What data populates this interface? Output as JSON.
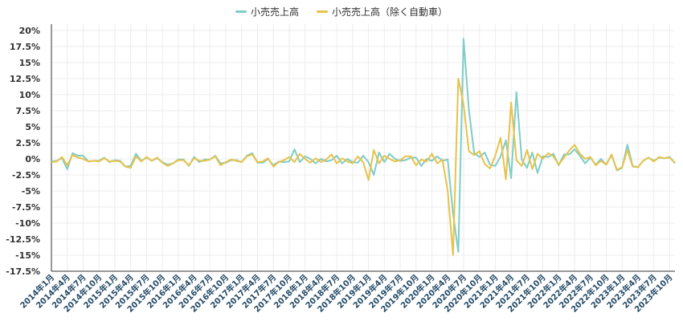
{
  "chart_data": {
    "type": "line",
    "legend_position": "top-center",
    "grid": true,
    "ylim": [
      -17.5,
      21
    ],
    "yticks": [
      20,
      17.5,
      15,
      12.5,
      10,
      7.5,
      5,
      2.5,
      0,
      -2.5,
      -5,
      -7.5,
      -10,
      -12.5,
      -15,
      -17.5
    ],
    "ytick_labels": [
      "20%",
      "17.5%",
      "15%",
      "12.5%",
      "10%",
      "7.5%",
      "5%",
      "2.5%",
      "0%",
      "-2.5%",
      "-5%",
      "-7.5%",
      "-10%",
      "-12.5%",
      "-15%",
      "-17.5%"
    ],
    "x": [
      "2014年1月",
      "2014年2月",
      "2014年3月",
      "2014年4月",
      "2014年5月",
      "2014年6月",
      "2014年7月",
      "2014年8月",
      "2014年9月",
      "2014年10月",
      "2014年11月",
      "2014年12月",
      "2015年1月",
      "2015年2月",
      "2015年3月",
      "2015年4月",
      "2015年5月",
      "2015年6月",
      "2015年7月",
      "2015年8月",
      "2015年9月",
      "2015年10月",
      "2015年11月",
      "2015年12月",
      "2016年1月",
      "2016年2月",
      "2016年3月",
      "2016年4月",
      "2016年5月",
      "2016年6月",
      "2016年7月",
      "2016年8月",
      "2016年9月",
      "2016年10月",
      "2016年11月",
      "2016年12月",
      "2017年1月",
      "2017年2月",
      "2017年3月",
      "2017年4月",
      "2017年5月",
      "2017年6月",
      "2017年7月",
      "2017年8月",
      "2017年9月",
      "2017年10月",
      "2017年11月",
      "2017年12月",
      "2018年1月",
      "2018年2月",
      "2018年3月",
      "2018年4月",
      "2018年5月",
      "2018年6月",
      "2018年7月",
      "2018年8月",
      "2018年9月",
      "2018年10月",
      "2018年11月",
      "2018年12月",
      "2019年1月",
      "2019年2月",
      "2019年3月",
      "2019年4月",
      "2019年5月",
      "2019年6月",
      "2019年7月",
      "2019年8月",
      "2019年9月",
      "2019年10月",
      "2019年11月",
      "2019年12月",
      "2020年1月",
      "2020年2月",
      "2020年3月",
      "2020年4月",
      "2020年5月",
      "2020年6月",
      "2020年7月",
      "2020年8月",
      "2020年9月",
      "2020年10月",
      "2020年11月",
      "2020年12月",
      "2021年1月",
      "2021年2月",
      "2021年3月",
      "2021年4月",
      "2021年5月",
      "2021年6月",
      "2021年7月",
      "2021年8月",
      "2021年9月",
      "2021年10月",
      "2021年11月",
      "2021年12月",
      "2022年1月",
      "2022年2月",
      "2022年3月",
      "2022年4月",
      "2022年5月",
      "2022年6月",
      "2022年7月",
      "2022年8月",
      "2022年9月",
      "2022年10月",
      "2022年11月",
      "2022年12月",
      "2023年1月",
      "2023年2月",
      "2023年3月",
      "2023年4月",
      "2023年5月",
      "2023年6月",
      "2023年7月",
      "2023年8月",
      "2023年9月",
      "2023年10月",
      "2023年11月"
    ],
    "xtick_every": 3,
    "series": [
      {
        "name": "小売売上高",
        "color": "#7ecdc8",
        "values": [
          -0.4,
          -0.3,
          0.1,
          -1.6,
          0.9,
          0.5,
          0.5,
          -0.4,
          -0.3,
          -0.3,
          0.2,
          -0.5,
          -0.2,
          -0.3,
          -1.2,
          -1.1,
          0.8,
          -0.3,
          0.2,
          -0.3,
          0.1,
          -0.5,
          -0.9,
          -0.7,
          -0.1,
          -0.1,
          -1.1,
          0.3,
          -0.5,
          -0.1,
          -0.1,
          0.5,
          -0.7,
          -0.6,
          -0.2,
          -0.2,
          -0.5,
          0.5,
          0.9,
          -0.6,
          -0.6,
          0.0,
          -1.0,
          -0.4,
          -0.5,
          -0.4,
          1.5,
          -0.5,
          0.4,
          0.0,
          -0.7,
          0.0,
          -0.4,
          -0.2,
          0.5,
          -0.7,
          0.0,
          -0.5,
          -0.6,
          0.5,
          -0.5,
          -2.5,
          1.0,
          -0.5,
          0.8,
          0.0,
          -0.3,
          -0.2,
          0.2,
          0.2,
          -1.1,
          0.0,
          -0.3,
          0.4,
          -0.3,
          -0.1,
          -8.5,
          -14.5,
          18.7,
          7.7,
          0.9,
          0.3,
          1.0,
          -0.9,
          -1.1,
          0.4,
          2.9,
          -3.0,
          10.4,
          -0.1,
          -1.4,
          1.0,
          -2.2,
          0.4,
          0.3,
          0.8,
          -1.0,
          0.7,
          0.7,
          1.5,
          0.5,
          -0.7,
          0.2,
          -0.9,
          0.0,
          -0.9,
          0.6,
          -1.8,
          -1.4,
          2.2,
          -1.1,
          -1.3,
          -0.3,
          0.2,
          -0.3,
          0.2,
          0.1,
          0.3,
          -0.7
        ]
      },
      {
        "name": "小売売上高（除く自動車）",
        "color": "#e8c24a",
        "values": [
          -0.5,
          -0.4,
          0.3,
          -1.0,
          0.6,
          0.2,
          0.0,
          -0.4,
          -0.3,
          -0.4,
          0.1,
          -0.4,
          -0.3,
          -0.4,
          -1.2,
          -1.4,
          0.4,
          -0.4,
          0.3,
          -0.3,
          0.2,
          -0.6,
          -1.1,
          -0.7,
          -0.2,
          -0.2,
          -1.0,
          0.1,
          -0.3,
          -0.3,
          -0.1,
          0.4,
          -1.0,
          -0.5,
          -0.1,
          -0.3,
          -0.5,
          0.4,
          0.7,
          -0.5,
          -0.4,
          0.1,
          -1.2,
          -0.5,
          -0.2,
          0.3,
          -0.5,
          0.8,
          0.0,
          -0.6,
          0.1,
          -0.5,
          -0.1,
          0.7,
          -0.7,
          0.1,
          -0.4,
          -0.7,
          0.4,
          -0.5,
          -3.3,
          1.4,
          -0.7,
          0.5,
          0.0,
          -0.4,
          -0.2,
          0.4,
          0.4,
          -1.0,
          -0.1,
          -0.4,
          0.8,
          -0.7,
          -0.1,
          -5.0,
          -15.0,
          12.5,
          8.5,
          1.2,
          0.6,
          1.2,
          -0.8,
          -1.5,
          0.5,
          3.3,
          -3.2,
          8.8,
          -0.2,
          -1.1,
          1.4,
          -1.6,
          0.8,
          0.0,
          0.9,
          0.4,
          -0.9,
          0.2,
          1.3,
          2.2,
          0.8,
          0.0,
          0.3,
          -1.0,
          -0.3,
          -0.9,
          0.7,
          -1.7,
          -1.3,
          1.4,
          -1.2,
          -1.3,
          -0.3,
          0.2,
          -0.4,
          0.3,
          0.1,
          0.2,
          -0.6
        ]
      }
    ]
  }
}
